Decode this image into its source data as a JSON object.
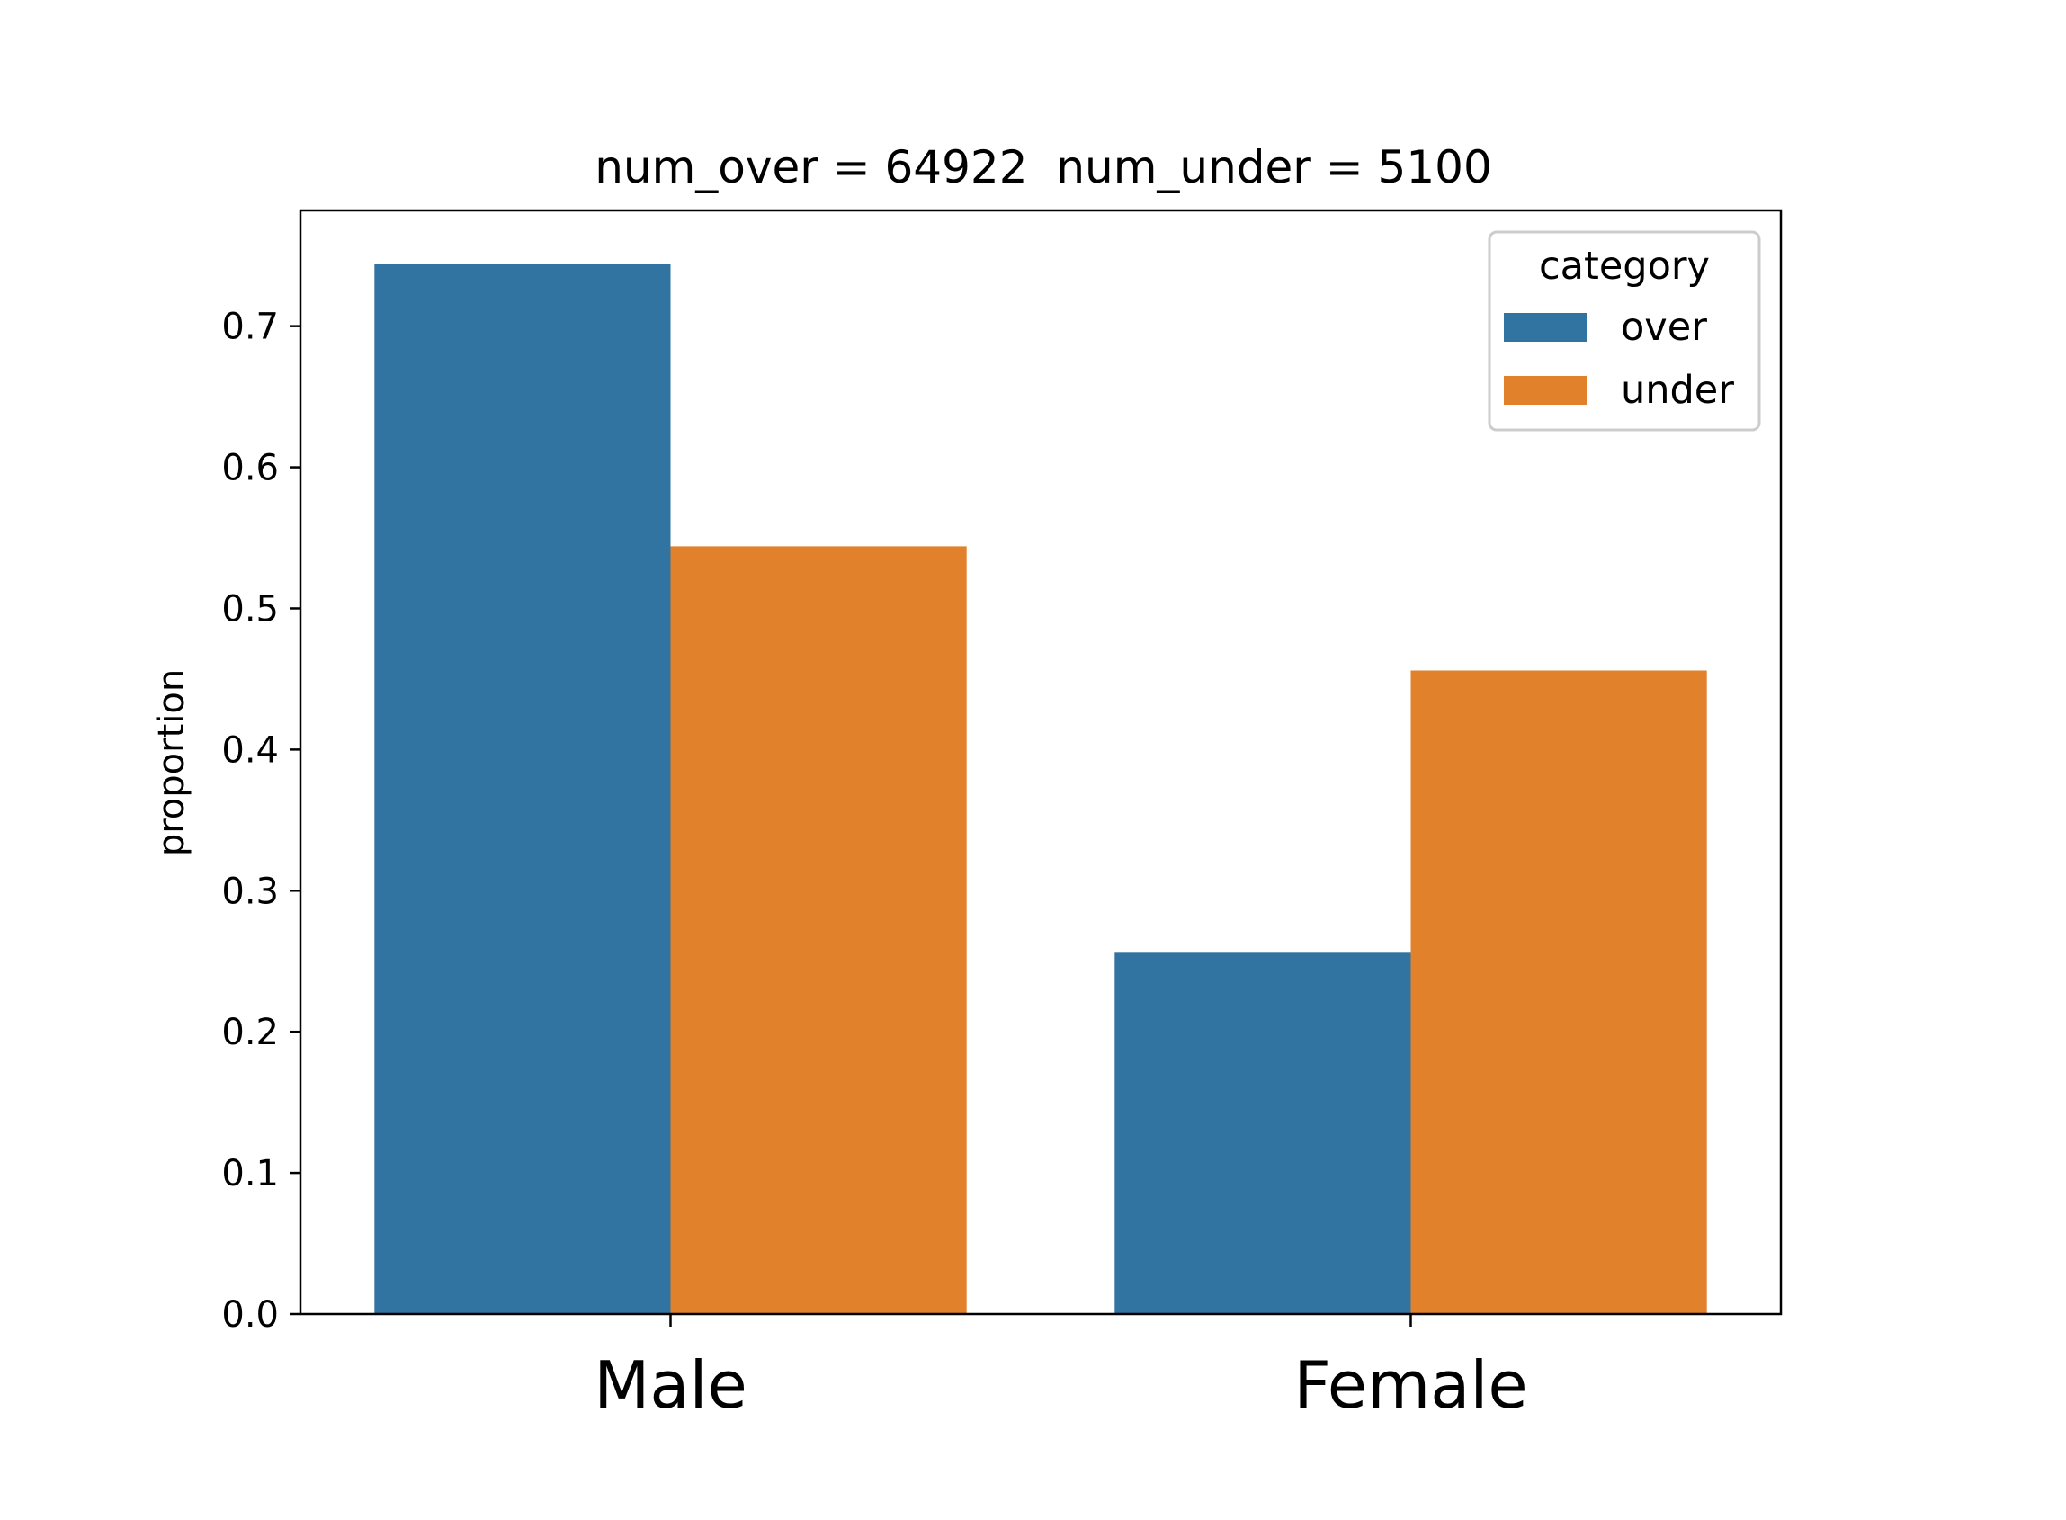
{
  "chart_data": {
    "type": "bar",
    "title": "num_over = 64922  num_under = 5100",
    "categories": [
      "Male",
      "Female"
    ],
    "series": [
      {
        "name": "over",
        "values": [
          0.744,
          0.256
        ],
        "color": "#3274a1"
      },
      {
        "name": "under",
        "values": [
          0.544,
          0.456
        ],
        "color": "#e1812c"
      }
    ],
    "xlabel": "",
    "ylabel": "proportion",
    "ylim": [
      0,
      0.782
    ],
    "yticks": [
      0.0,
      0.1,
      0.2,
      0.3,
      0.4,
      0.5,
      0.6,
      0.7
    ],
    "legend": {
      "title": "category",
      "position": "top-right"
    },
    "grid": false
  }
}
